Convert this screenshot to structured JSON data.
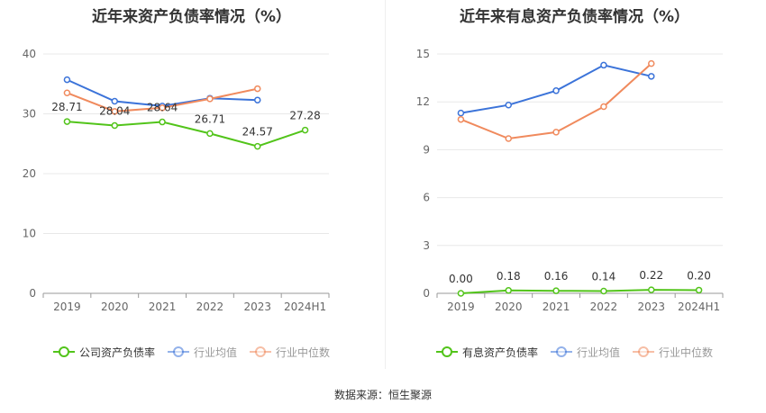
{
  "source_text": "数据来源：恒生聚源",
  "chart_data": [
    {
      "type": "line",
      "title": "近年来资产负债率情况（%）",
      "categories": [
        "2019",
        "2020",
        "2021",
        "2022",
        "2023",
        "2024H1"
      ],
      "ylim": [
        0,
        40
      ],
      "yticks": [
        0,
        10,
        20,
        30,
        40
      ],
      "grid": true,
      "legend_position": "bottom",
      "series": [
        {
          "name": "公司资产负债率",
          "color": "#52c41a",
          "values": [
            28.71,
            28.04,
            28.64,
            26.71,
            24.57,
            27.28
          ],
          "labels": [
            "28.71",
            "28.04",
            "28.64",
            "26.71",
            "24.57",
            "27.28"
          ]
        },
        {
          "name": "行业均值",
          "color": "#3b73d9",
          "values": [
            35.7,
            32.1,
            31.3,
            32.6,
            32.3,
            null
          ]
        },
        {
          "name": "行业中位数",
          "color": "#f08a5d",
          "values": [
            33.5,
            30.4,
            31.0,
            32.5,
            34.2,
            null
          ]
        }
      ]
    },
    {
      "type": "line",
      "title": "近年来有息资产负债率情况（%）",
      "categories": [
        "2019",
        "2020",
        "2021",
        "2022",
        "2023",
        "2024H1"
      ],
      "ylim": [
        0,
        15
      ],
      "yticks": [
        0,
        3,
        6,
        9,
        12,
        15
      ],
      "grid": true,
      "legend_position": "bottom",
      "series": [
        {
          "name": "有息资产负债率",
          "color": "#52c41a",
          "values": [
            0.0,
            0.18,
            0.16,
            0.14,
            0.22,
            0.2
          ],
          "labels": [
            "0.00",
            "0.18",
            "0.16",
            "0.14",
            "0.22",
            "0.20"
          ]
        },
        {
          "name": "行业均值",
          "color": "#3b73d9",
          "values": [
            11.3,
            11.8,
            12.7,
            14.3,
            13.6,
            null
          ]
        },
        {
          "name": "行业中位数",
          "color": "#f08a5d",
          "values": [
            10.9,
            9.7,
            10.1,
            11.7,
            14.4,
            null
          ]
        }
      ]
    }
  ]
}
